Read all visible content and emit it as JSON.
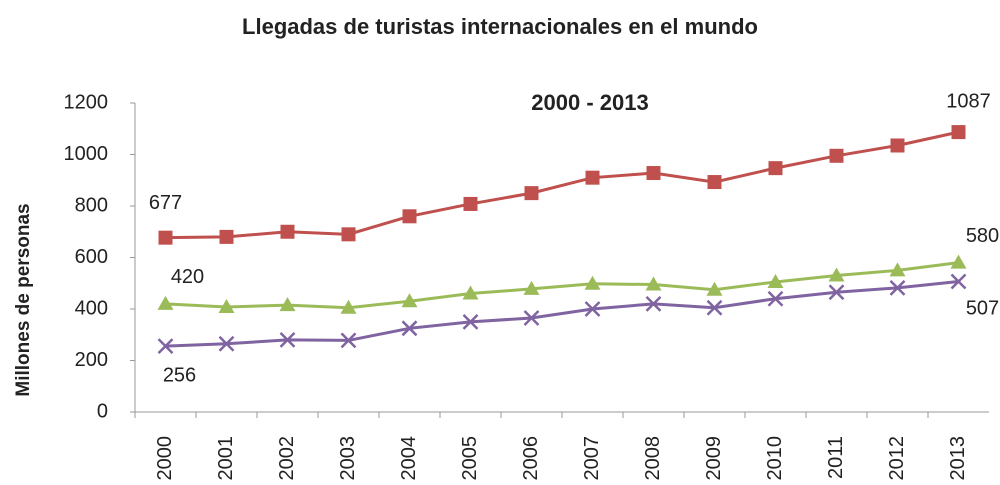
{
  "chart_data": {
    "type": "line",
    "title": "Llegadas de turistas internacionales en el mundo",
    "subtitle": "2000 - 2013",
    "y_label": "Millones de personas",
    "categories": [
      "2000",
      "2001",
      "2002",
      "2003",
      "2004",
      "2005",
      "2006",
      "2007",
      "2008",
      "2009",
      "2010",
      "2011",
      "2012",
      "2013"
    ],
    "series": [
      {
        "color": "#c0504d",
        "marker": "square",
        "values": [
          677,
          680,
          700,
          690,
          760,
          808,
          850,
          910,
          928,
          893,
          947,
          995,
          1035,
          1087
        ]
      },
      {
        "color": "#9bbb59",
        "marker": "triangle",
        "values": [
          420,
          408,
          415,
          405,
          430,
          460,
          478,
          498,
          495,
          475,
          505,
          530,
          550,
          580
        ]
      },
      {
        "color": "#8064a2",
        "marker": "x",
        "values": [
          256,
          265,
          280,
          278,
          325,
          350,
          365,
          400,
          420,
          405,
          440,
          465,
          482,
          507
        ]
      }
    ],
    "ylim": [
      0,
      1200
    ],
    "yticks": [
      0,
      200,
      400,
      600,
      800,
      1000,
      1200
    ],
    "grid": false
  }
}
